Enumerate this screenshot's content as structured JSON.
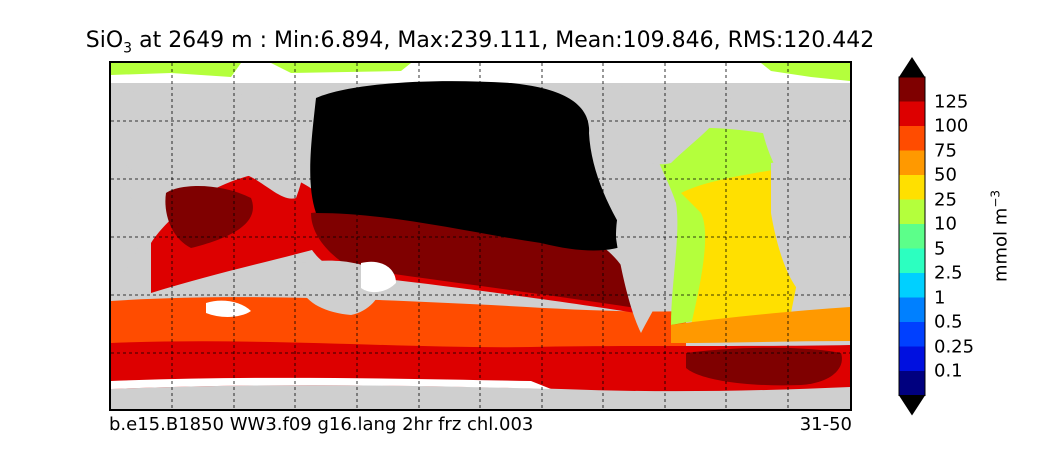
{
  "title": {
    "species": "SiO",
    "species_sub": "3",
    "rest": " at 2649 m : Min:6.894, Max:239.111, Mean:109.846, RMS:120.442"
  },
  "footer": {
    "case_name": "b.e15.B1850 WW3.f09 g16.lang 2hr frz chl.003",
    "years": "31-50"
  },
  "colorbar": {
    "units_base": "mmol m",
    "units_sup": "−3",
    "ticks": [
      "125",
      "100",
      "75",
      "50",
      "25",
      "10",
      "5",
      "2.5",
      "1",
      "0.5",
      "0.25",
      "0.1"
    ],
    "colors": [
      "#7f0000",
      "#dd0000",
      "#ff4c00",
      "#ff9900",
      "#ffe000",
      "#b4ff3c",
      "#5cff8a",
      "#2cffc0",
      "#00d0ff",
      "#0080ff",
      "#0040ff",
      "#0010e0",
      "#00007f"
    ],
    "extend_color": "#000000"
  },
  "map": {
    "land_color": "#cfcfcf",
    "nodata_color": "#000000",
    "missing_color": "#ffffff",
    "gridlines": "dashed"
  }
}
